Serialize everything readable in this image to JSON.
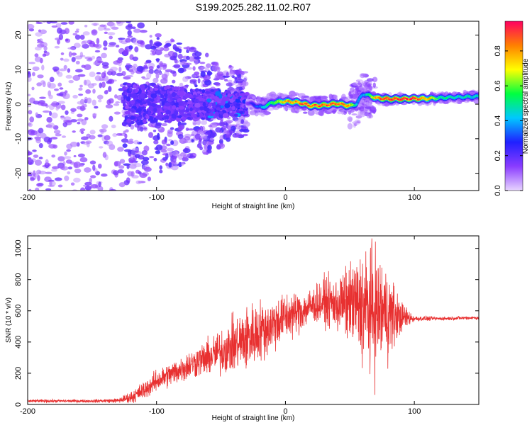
{
  "title": "S199.2025.282.11.02.R07",
  "chart_data": [
    {
      "type": "heatmap",
      "xlabel": "Height of straight line (km)",
      "ylabel": "Frequency (Hz)",
      "xlim": [
        -200,
        150
      ],
      "ylim": [
        -25,
        24
      ],
      "xticks": [
        -200,
        -100,
        0,
        100
      ],
      "yticks": [
        -20,
        -10,
        0,
        10,
        20
      ],
      "colorbar": {
        "label": "Normalized spectral amplitude",
        "range": [
          0,
          0.97
        ],
        "ticks": [
          "0.0",
          "0.2",
          "0.4",
          "0.6",
          "0.8"
        ],
        "tick_values": [
          0.0,
          0.2,
          0.4,
          0.6,
          0.8
        ],
        "colors": [
          "#e8d4ff",
          "#8a3cff",
          "#2020ff",
          "#00c8ff",
          "#00ff40",
          "#ffff00",
          "#ff8000",
          "#ff0060"
        ]
      },
      "ridge": {
        "x": [
          -30,
          -22,
          -18,
          -10,
          0,
          10,
          20,
          30,
          40,
          50,
          55,
          60,
          65,
          70,
          80,
          90,
          100,
          110,
          120,
          130,
          140,
          150
        ],
        "freq": [
          0.5,
          -0.5,
          -1.0,
          0.5,
          0.8,
          0.5,
          -0.5,
          -0.3,
          0.2,
          -0.5,
          0.0,
          3.0,
          2.5,
          1.8,
          1.5,
          1.5,
          1.6,
          1.6,
          1.8,
          2.0,
          2.1,
          2.2
        ],
        "amplitude": [
          0.15,
          0.3,
          0.4,
          0.55,
          0.75,
          0.8,
          0.85,
          0.85,
          0.85,
          0.8,
          0.4,
          0.35,
          0.5,
          0.8,
          0.9,
          0.92,
          0.9,
          0.75,
          0.5,
          0.45,
          0.45,
          0.45
        ]
      }
    },
    {
      "type": "line",
      "xlabel": "Height of straight line (km)",
      "ylabel": "SNR (10 * v/v)",
      "xlim": [
        -200,
        150
      ],
      "ylim": [
        0,
        1080
      ],
      "xticks": [
        -200,
        -100,
        0,
        100
      ],
      "yticks": [
        0,
        200,
        400,
        600,
        800,
        1000
      ],
      "color": "#e83030",
      "series": [
        {
          "name": "SNR",
          "envelope_x": [
            -200,
            -150,
            -130,
            -120,
            -110,
            -100,
            -90,
            -80,
            -70,
            -60,
            -50,
            -40,
            -30,
            -20,
            -10,
            0,
            10,
            20,
            30,
            40,
            50,
            60,
            70,
            80,
            90,
            100,
            110,
            120,
            130,
            140,
            150
          ],
          "envelope_mid": [
            22,
            22,
            25,
            45,
            90,
            150,
            190,
            230,
            270,
            300,
            340,
            380,
            420,
            470,
            510,
            560,
            590,
            630,
            660,
            640,
            650,
            620,
            600,
            580,
            560,
            550,
            550,
            550,
            552,
            555,
            555
          ],
          "envelope_amp": [
            10,
            10,
            15,
            40,
            60,
            70,
            80,
            90,
            100,
            120,
            150,
            180,
            220,
            200,
            180,
            160,
            140,
            120,
            150,
            180,
            250,
            380,
            420,
            300,
            100,
            20,
            15,
            12,
            12,
            12,
            12
          ]
        }
      ]
    }
  ]
}
